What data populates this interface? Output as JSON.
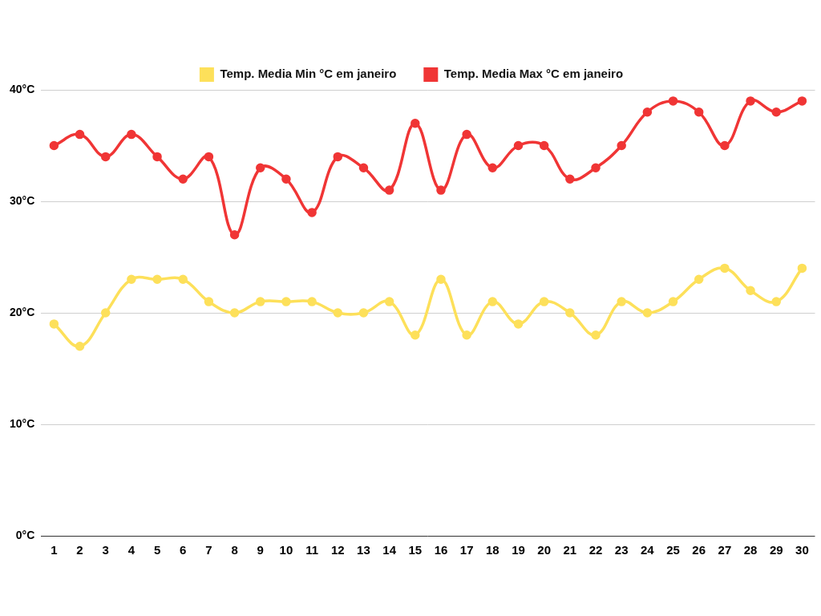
{
  "chart_data": {
    "type": "line",
    "categories": [
      "1",
      "2",
      "3",
      "4",
      "5",
      "6",
      "7",
      "8",
      "9",
      "10",
      "11",
      "12",
      "13",
      "14",
      "15",
      "16",
      "17",
      "18",
      "19",
      "20",
      "21",
      "22",
      "23",
      "24",
      "25",
      "26",
      "27",
      "28",
      "29",
      "30"
    ],
    "series": [
      {
        "name": "Temp. Media Min °C em janeiro",
        "color": "#fde05a",
        "marker": "circle",
        "line_style": "solid",
        "values": [
          19,
          17,
          20,
          23,
          23,
          23,
          21,
          20,
          21,
          21,
          21,
          20,
          20,
          21,
          18,
          23,
          18,
          21,
          19,
          21,
          20,
          18,
          21,
          20,
          21,
          23,
          24,
          22,
          21,
          24
        ]
      },
      {
        "name": "Temp. Media Max °C em janeiro",
        "color": "#f03535",
        "marker": "circle",
        "line_style": "solid",
        "values": [
          35,
          36,
          34,
          36,
          34,
          32,
          34,
          27,
          33,
          32,
          29,
          34,
          33,
          31,
          37,
          31,
          36,
          33,
          35,
          35,
          32,
          33,
          35,
          38,
          39,
          38,
          35,
          39,
          38,
          39
        ]
      }
    ],
    "ylim": [
      0,
      40
    ],
    "yticks": [
      {
        "value": 0,
        "label": "0°C"
      },
      {
        "value": 10,
        "label": "10°C"
      },
      {
        "value": 20,
        "label": "20°C"
      },
      {
        "value": 30,
        "label": "30°C"
      },
      {
        "value": 40,
        "label": "40°C"
      }
    ],
    "grid": true,
    "legend": "top"
  }
}
